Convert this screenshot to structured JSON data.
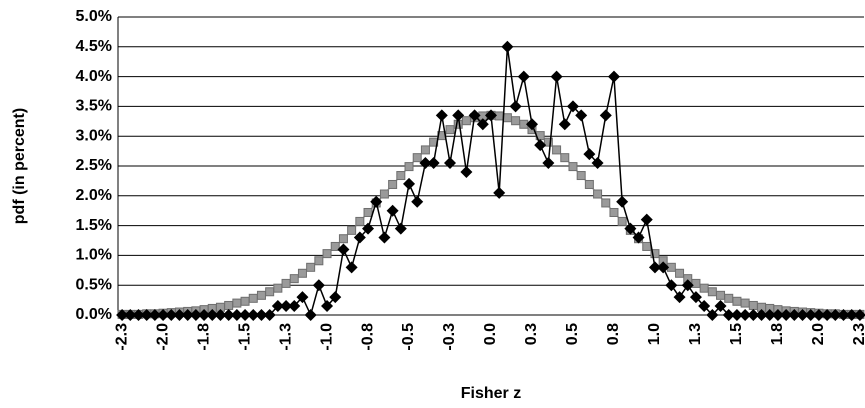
{
  "chart_data": {
    "type": "line",
    "x_label": "Fisher z",
    "y_label": "pdf (in percent)",
    "categories": [
      "-2.3",
      null,
      null,
      null,
      null,
      "-2.0",
      null,
      null,
      null,
      null,
      "-1.8",
      null,
      null,
      null,
      null,
      "-1.5",
      null,
      null,
      null,
      null,
      "-1.3",
      null,
      null,
      null,
      null,
      "-1.0",
      null,
      null,
      null,
      null,
      "-0.8",
      null,
      null,
      null,
      null,
      "-0.5",
      null,
      null,
      null,
      null,
      "-0.3",
      null,
      null,
      null,
      null,
      "0.0",
      null,
      null,
      null,
      null,
      "0.3",
      null,
      null,
      null,
      null,
      "0.5",
      null,
      null,
      null,
      null,
      "0.8",
      null,
      null,
      null,
      null,
      "1.0",
      null,
      null,
      null,
      null,
      "1.3",
      null,
      null,
      null,
      null,
      "1.5",
      null,
      null,
      null,
      null,
      "1.8",
      null,
      null,
      null,
      null,
      "2.0",
      null,
      null,
      null,
      null,
      "2.3"
    ],
    "series": [
      {
        "color": "#9a9a9a",
        "marker": "square",
        "values": [
          0.01,
          0.01,
          0.01,
          0.02,
          0.02,
          0.03,
          0.04,
          0.05,
          0.06,
          0.07,
          0.09,
          0.11,
          0.13,
          0.16,
          0.2,
          0.23,
          0.28,
          0.33,
          0.39,
          0.45,
          0.53,
          0.61,
          0.7,
          0.8,
          0.91,
          1.03,
          1.15,
          1.28,
          1.42,
          1.57,
          1.72,
          1.88,
          2.03,
          2.19,
          2.34,
          2.49,
          2.64,
          2.77,
          2.9,
          3.01,
          3.11,
          3.2,
          3.26,
          3.31,
          3.34,
          3.35,
          3.34,
          3.31,
          3.26,
          3.2,
          3.11,
          3.01,
          2.9,
          2.77,
          2.64,
          2.49,
          2.34,
          2.19,
          2.03,
          1.88,
          1.72,
          1.57,
          1.42,
          1.28,
          1.15,
          1.03,
          0.91,
          0.8,
          0.7,
          0.61,
          0.53,
          0.45,
          0.39,
          0.33,
          0.28,
          0.23,
          0.2,
          0.16,
          0.13,
          0.11,
          0.09,
          0.07,
          0.06,
          0.05,
          0.04,
          0.03,
          0.02,
          0.02,
          0.01,
          0.01,
          0.01
        ]
      },
      {
        "color": "#000000",
        "marker": "diamond",
        "values": [
          0,
          0,
          0,
          0,
          0,
          0,
          0,
          0,
          0,
          0,
          0,
          0,
          0,
          0,
          0,
          0,
          0,
          0,
          0,
          0.15,
          0.15,
          0.15,
          0.3,
          0,
          0.5,
          0.15,
          0.3,
          1.1,
          0.8,
          1.3,
          1.45,
          1.9,
          1.3,
          1.75,
          1.45,
          2.2,
          1.9,
          2.55,
          2.55,
          3.35,
          2.55,
          3.35,
          2.4,
          3.35,
          3.2,
          3.35,
          2.05,
          4.5,
          3.5,
          4.0,
          3.2,
          2.85,
          2.55,
          4.0,
          3.2,
          3.5,
          3.35,
          2.7,
          2.55,
          3.35,
          4.0,
          1.9,
          1.45,
          1.3,
          1.6,
          0.8,
          0.8,
          0.5,
          0.3,
          0.5,
          0.3,
          0.15,
          0,
          0.15,
          0,
          0,
          0,
          0,
          0,
          0,
          0,
          0,
          0,
          0,
          0,
          0,
          0,
          0,
          0,
          0,
          0
        ]
      }
    ],
    "ylim": [
      0,
      5
    ],
    "yticks": [
      {
        "value": 0,
        "label": "0.0%"
      },
      {
        "value": 0.5,
        "label": "0.5%"
      },
      {
        "value": 1,
        "label": "1.0%"
      },
      {
        "value": 1.5,
        "label": "1.5%"
      },
      {
        "value": 2,
        "label": "2.0%"
      },
      {
        "value": 2.5,
        "label": "2.5%"
      },
      {
        "value": 3,
        "label": "3.0%"
      },
      {
        "value": 3.5,
        "label": "3.5%"
      },
      {
        "value": 4,
        "label": "4.0%"
      },
      {
        "value": 4.5,
        "label": "4.5%"
      },
      {
        "value": 5,
        "label": "5.0%"
      }
    ],
    "grid": true
  }
}
